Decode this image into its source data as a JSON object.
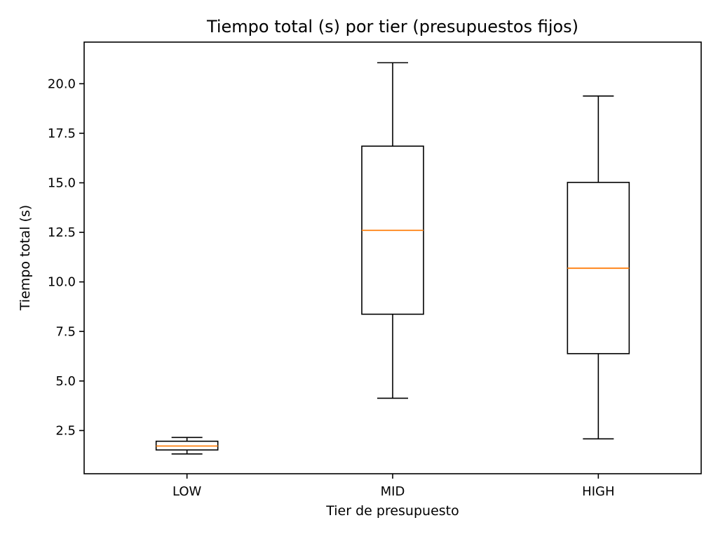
{
  "chart_data": {
    "type": "box",
    "title": "Tiempo total (s) por tier (presupuestos fijos)",
    "xlabel": "Tier de presupuesto",
    "ylabel": "Tiempo total (s)",
    "ylim": [
      0.32,
      22.1
    ],
    "yticks": [
      2.5,
      5.0,
      7.5,
      10.0,
      12.5,
      15.0,
      17.5,
      20.0
    ],
    "ytick_labels": [
      "2.5",
      "5.0",
      "7.5",
      "10.0",
      "12.5",
      "15.0",
      "17.5",
      "20.0"
    ],
    "categories": [
      "LOW",
      "MID",
      "HIGH"
    ],
    "boxes": [
      {
        "category": "LOW",
        "whisker_low": 1.32,
        "q1": 1.52,
        "median": 1.72,
        "q3": 1.96,
        "whisker_high": 2.15
      },
      {
        "category": "MID",
        "whisker_low": 4.13,
        "q1": 8.37,
        "median": 12.6,
        "q3": 16.85,
        "whisker_high": 21.06
      },
      {
        "category": "HIGH",
        "whisker_low": 2.08,
        "q1": 6.38,
        "median": 10.69,
        "q3": 15.02,
        "whisker_high": 19.38
      }
    ],
    "grid": false,
    "colors": {
      "box": "#000000",
      "median": "#ff7f0e",
      "axes": "#000000",
      "background": "#ffffff"
    }
  }
}
